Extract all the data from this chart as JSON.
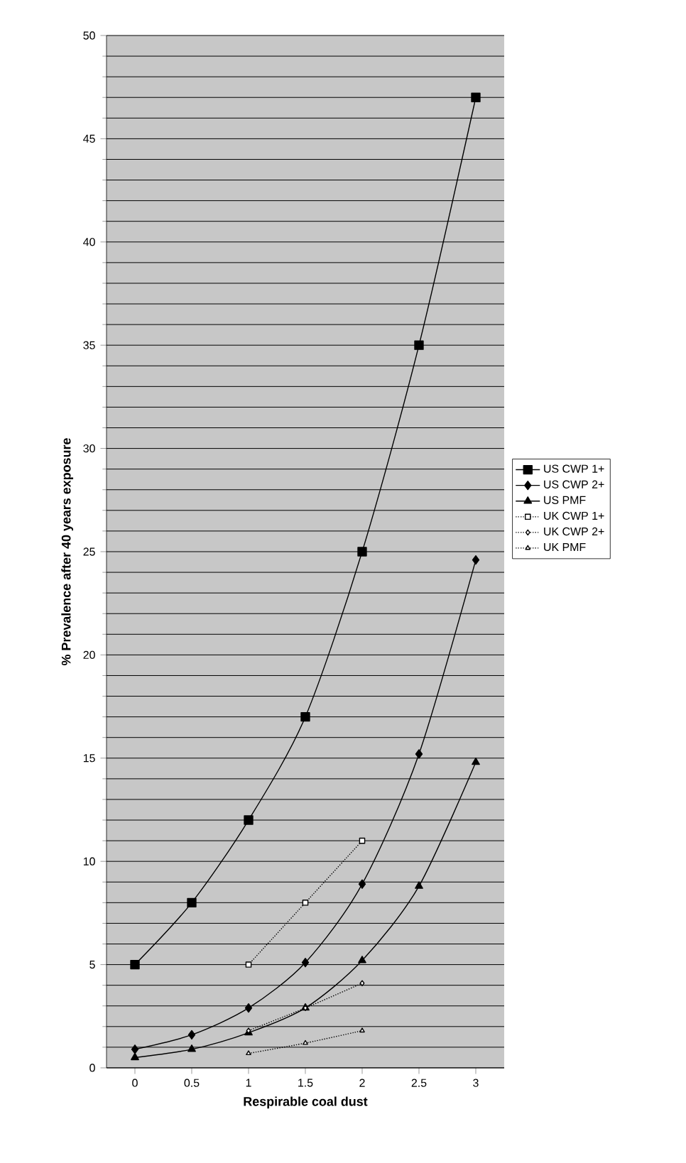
{
  "chart_data": {
    "type": "line",
    "xlabel": "Respirable coal dust",
    "ylabel": "% Prevalence after 40 years exposure",
    "categories": [
      "0",
      "0.5",
      "1",
      "1.5",
      "2",
      "2.5",
      "3"
    ],
    "series": [
      {
        "name": "US CWP 1+",
        "color": "#000000",
        "marker": "square",
        "line_style": "solid",
        "values": [
          5,
          8,
          12,
          17,
          25,
          35,
          47
        ]
      },
      {
        "name": "US CWP 2+",
        "color": "#000000",
        "marker": "diamond",
        "line_style": "solid",
        "values": [
          0.9,
          1.6,
          2.9,
          5.1,
          8.9,
          15.2,
          24.6
        ]
      },
      {
        "name": "US PMF",
        "color": "#000000",
        "marker": "triangle",
        "line_style": "solid",
        "values": [
          0.5,
          0.9,
          1.7,
          2.9,
          5.2,
          8.8,
          14.8
        ]
      },
      {
        "name": "UK CWP 1+",
        "color": "#000000",
        "marker": "square",
        "line_style": "dotted",
        "values": [
          null,
          null,
          5,
          8,
          11,
          null,
          null
        ]
      },
      {
        "name": "UK CWP 2+",
        "color": "#000000",
        "marker": "diamond",
        "line_style": "dotted",
        "values": [
          null,
          null,
          1.8,
          2.9,
          4.1,
          null,
          null
        ]
      },
      {
        "name": "UK PMF",
        "color": "#000000",
        "marker": "triangle",
        "line_style": "dotted",
        "values": [
          null,
          null,
          0.7,
          1.2,
          1.8,
          null,
          null
        ]
      }
    ],
    "ylim": [
      0,
      50
    ],
    "yticks": [
      0,
      5,
      10,
      15,
      20,
      25,
      30,
      35,
      40,
      45,
      50
    ],
    "grid": "y",
    "legend": "right"
  }
}
